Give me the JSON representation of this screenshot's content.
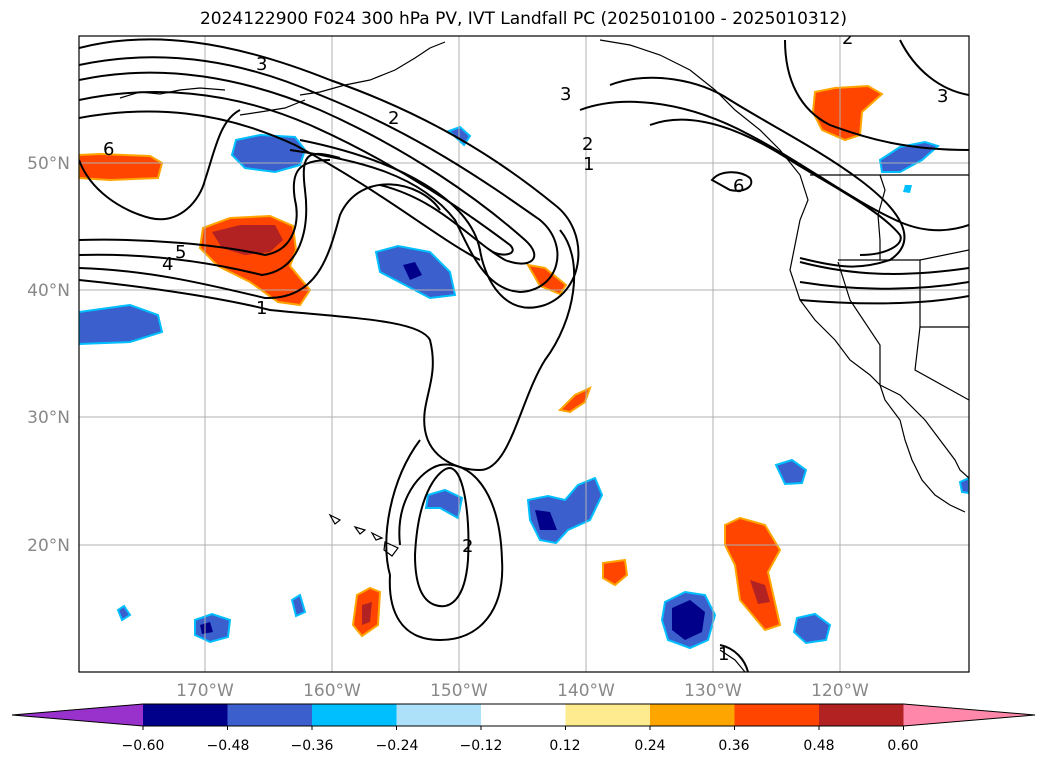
{
  "title": "2024122900 F024 300 hPa PV, IVT Landfall PC (2025010100 - 2025010312)",
  "map": {
    "lat_labels": [
      "50°N",
      "40°N",
      "30°N",
      "20°N"
    ],
    "lon_labels": [
      "170°W",
      "160°W",
      "150°W",
      "140°W",
      "130°W",
      "120°W"
    ],
    "contour_labels": [
      "3",
      "2",
      "1",
      "6",
      "5",
      "4",
      "1",
      "3",
      "2",
      "1",
      "6",
      "3",
      "2",
      "2",
      "1"
    ],
    "colors": {
      "neg_060": "#9932cc",
      "neg_048": "#00008b",
      "neg_036": "#3b5fcd",
      "neg_024": "#00bfff",
      "neg_012": "#ade1fa",
      "pos_012": "#ffeb8f",
      "pos_024": "#ffa500",
      "pos_036": "#ff4500",
      "pos_048": "#b22222",
      "pos_060": "#ff88aa"
    }
  },
  "colorbar": {
    "ticks": [
      "−0.60",
      "−0.48",
      "−0.36",
      "−0.24",
      "−0.12",
      "0.12",
      "0.24",
      "0.36",
      "0.48",
      "0.60"
    ],
    "colors": [
      "#9932cc",
      "#00008b",
      "#3b5fcd",
      "#00bfff",
      "#ade1fa",
      "#ffffff",
      "#ffeb8f",
      "#ffa500",
      "#ff4500",
      "#b22222",
      "#ff88aa"
    ]
  }
}
